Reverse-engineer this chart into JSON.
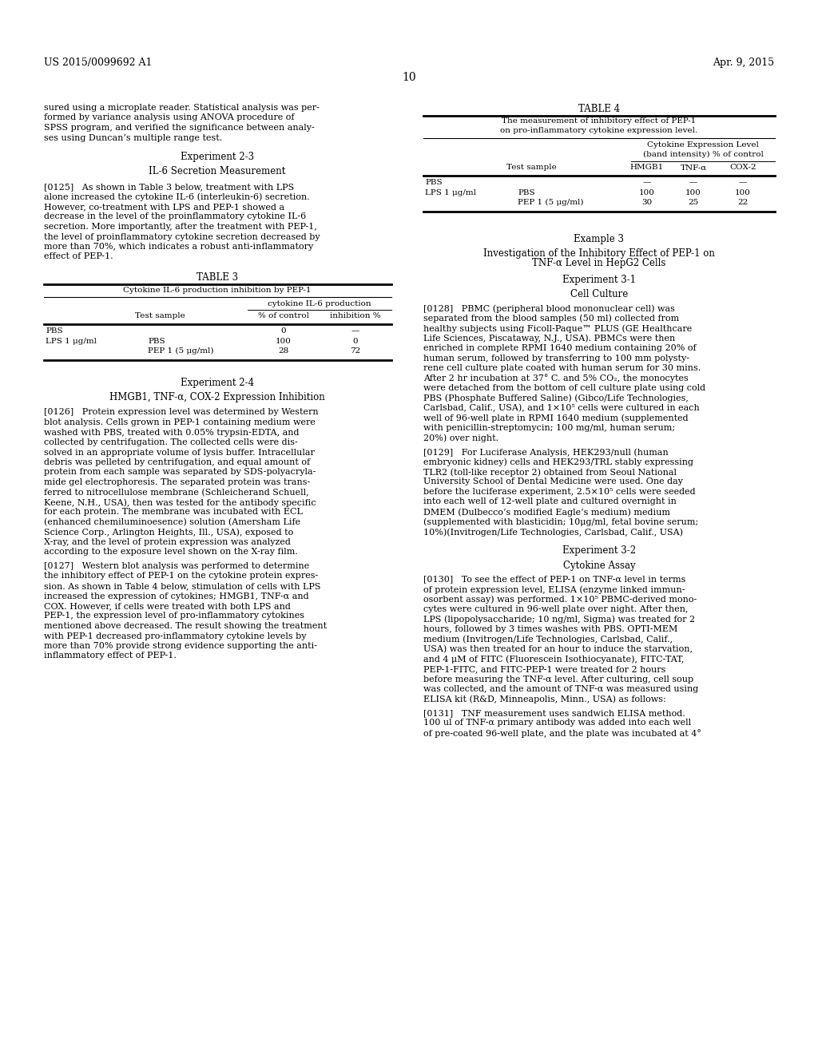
{
  "background_color": "#ffffff",
  "page_number": "10",
  "header_left": "US 2015/0099692 A1",
  "header_right": "Apr. 9, 2015"
}
